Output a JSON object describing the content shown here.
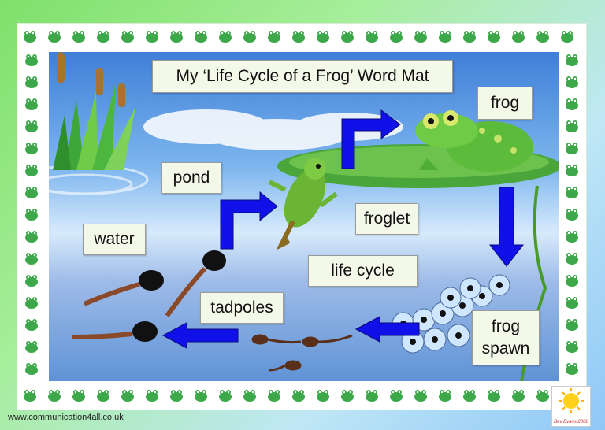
{
  "title": "My ‘Life Cycle of a Frog’ Word Mat",
  "labels": {
    "frog": "frog",
    "pond": "pond",
    "froglet": "froglet",
    "water": "water",
    "life_cycle": "life cycle",
    "tadpoles": "tadpoles",
    "frog_spawn": "frog\nspawn"
  },
  "footer": {
    "website": "www.communication4all.co.uk"
  },
  "logo": {
    "credit": "Bev Evans 2008"
  },
  "colors": {
    "arrow": "#1010e8",
    "border_frog": "#3da84a"
  }
}
